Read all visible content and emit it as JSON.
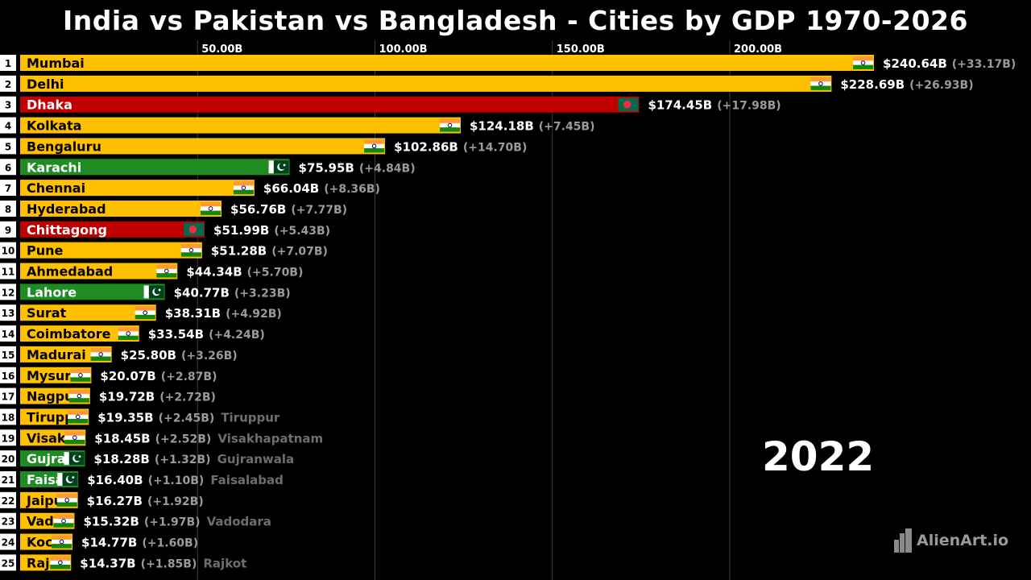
{
  "colors": {
    "India": "#ffc000",
    "Bangladesh": "#c00000",
    "Pakistan": "#1e8c22",
    "background": "#000000"
  },
  "chart_data": {
    "type": "bar",
    "title": "India vs Pakistan vs Bangladesh - Cities by GDP 1970-2026",
    "year": "2022",
    "xlim": [
      0,
      250
    ],
    "x_ticks": [
      {
        "value": 50,
        "label": "50.00B"
      },
      {
        "value": 100,
        "label": "100.00B"
      },
      {
        "value": 150,
        "label": "150.00B"
      },
      {
        "value": 200,
        "label": "200.00B"
      }
    ],
    "bars": [
      {
        "rank": "1",
        "city": "Mumbai",
        "country": "India",
        "value": 240.64,
        "value_label": "$240.64B",
        "change_label": "(+33.17B)",
        "outside_label": ""
      },
      {
        "rank": "2",
        "city": "Delhi",
        "country": "India",
        "value": 228.69,
        "value_label": "$228.69B",
        "change_label": "(+26.93B)",
        "outside_label": ""
      },
      {
        "rank": "3",
        "city": "Dhaka",
        "country": "Bangladesh",
        "value": 174.45,
        "value_label": "$174.45B",
        "change_label": "(+17.98B)",
        "outside_label": ""
      },
      {
        "rank": "4",
        "city": "Kolkata",
        "country": "India",
        "value": 124.18,
        "value_label": "$124.18B",
        "change_label": "(+7.45B)",
        "outside_label": ""
      },
      {
        "rank": "5",
        "city": "Bengaluru",
        "country": "India",
        "value": 102.86,
        "value_label": "$102.86B",
        "change_label": "(+14.70B)",
        "outside_label": ""
      },
      {
        "rank": "6",
        "city": "Karachi",
        "country": "Pakistan",
        "value": 75.95,
        "value_label": "$75.95B",
        "change_label": "(+4.84B)",
        "outside_label": ""
      },
      {
        "rank": "7",
        "city": "Chennai",
        "country": "India",
        "value": 66.04,
        "value_label": "$66.04B",
        "change_label": "(+8.36B)",
        "outside_label": ""
      },
      {
        "rank": "8",
        "city": "Hyderabad",
        "country": "India",
        "value": 56.76,
        "value_label": "$56.76B",
        "change_label": "(+7.77B)",
        "outside_label": ""
      },
      {
        "rank": "9",
        "city": "Chittagong",
        "country": "Bangladesh",
        "value": 51.99,
        "value_label": "$51.99B",
        "change_label": "(+5.43B)",
        "outside_label": ""
      },
      {
        "rank": "10",
        "city": "Pune",
        "country": "India",
        "value": 51.28,
        "value_label": "$51.28B",
        "change_label": "(+7.07B)",
        "outside_label": ""
      },
      {
        "rank": "11",
        "city": "Ahmedabad",
        "country": "India",
        "value": 44.34,
        "value_label": "$44.34B",
        "change_label": "(+5.70B)",
        "outside_label": ""
      },
      {
        "rank": "12",
        "city": "Lahore",
        "country": "Pakistan",
        "value": 40.77,
        "value_label": "$40.77B",
        "change_label": "(+3.23B)",
        "outside_label": ""
      },
      {
        "rank": "13",
        "city": "Surat",
        "country": "India",
        "value": 38.31,
        "value_label": "$38.31B",
        "change_label": "(+4.92B)",
        "outside_label": ""
      },
      {
        "rank": "14",
        "city": "Coimbatore",
        "country": "India",
        "value": 33.54,
        "value_label": "$33.54B",
        "change_label": "(+4.24B)",
        "outside_label": ""
      },
      {
        "rank": "15",
        "city": "Madurai",
        "country": "India",
        "value": 25.8,
        "value_label": "$25.80B",
        "change_label": "(+3.26B)",
        "outside_label": ""
      },
      {
        "rank": "16",
        "city": "Mysuru",
        "country": "India",
        "value": 20.07,
        "value_label": "$20.07B",
        "change_label": "(+2.87B)",
        "outside_label": ""
      },
      {
        "rank": "17",
        "city": "Nagpur",
        "country": "India",
        "value": 19.72,
        "value_label": "$19.72B",
        "change_label": "(+2.72B)",
        "outside_label": ""
      },
      {
        "rank": "18",
        "city": "Tiruppur",
        "country": "India",
        "value": 19.35,
        "value_label": "$19.35B",
        "change_label": "(+2.45B)",
        "outside_label": "Tiruppur"
      },
      {
        "rank": "19",
        "city": "Visakhapatnam",
        "country": "India",
        "value": 18.45,
        "value_label": "$18.45B",
        "change_label": "(+2.52B)",
        "outside_label": "Visakhapatnam"
      },
      {
        "rank": "20",
        "city": "Gujranwala",
        "country": "Pakistan",
        "value": 18.28,
        "value_label": "$18.28B",
        "change_label": "(+1.32B)",
        "outside_label": "Gujranwala"
      },
      {
        "rank": "21",
        "city": "Faisalabad",
        "country": "Pakistan",
        "value": 16.4,
        "value_label": "$16.40B",
        "change_label": "(+1.10B)",
        "outside_label": "Faisalabad"
      },
      {
        "rank": "22",
        "city": "Jaipur",
        "country": "India",
        "value": 16.27,
        "value_label": "$16.27B",
        "change_label": "(+1.92B)",
        "outside_label": ""
      },
      {
        "rank": "23",
        "city": "Vadodara",
        "country": "India",
        "value": 15.32,
        "value_label": "$15.32B",
        "change_label": "(+1.97B)",
        "outside_label": "Vadodara"
      },
      {
        "rank": "24",
        "city": "Kochi",
        "country": "India",
        "value": 14.77,
        "value_label": "$14.77B",
        "change_label": "(+1.60B)",
        "outside_label": ""
      },
      {
        "rank": "25",
        "city": "Rajkot",
        "country": "India",
        "value": 14.37,
        "value_label": "$14.37B",
        "change_label": "(+1.85B)",
        "outside_label": "Rajkot"
      }
    ]
  },
  "brand": {
    "name": "AlienArt.io",
    "icon": "city-skyline-icon"
  }
}
